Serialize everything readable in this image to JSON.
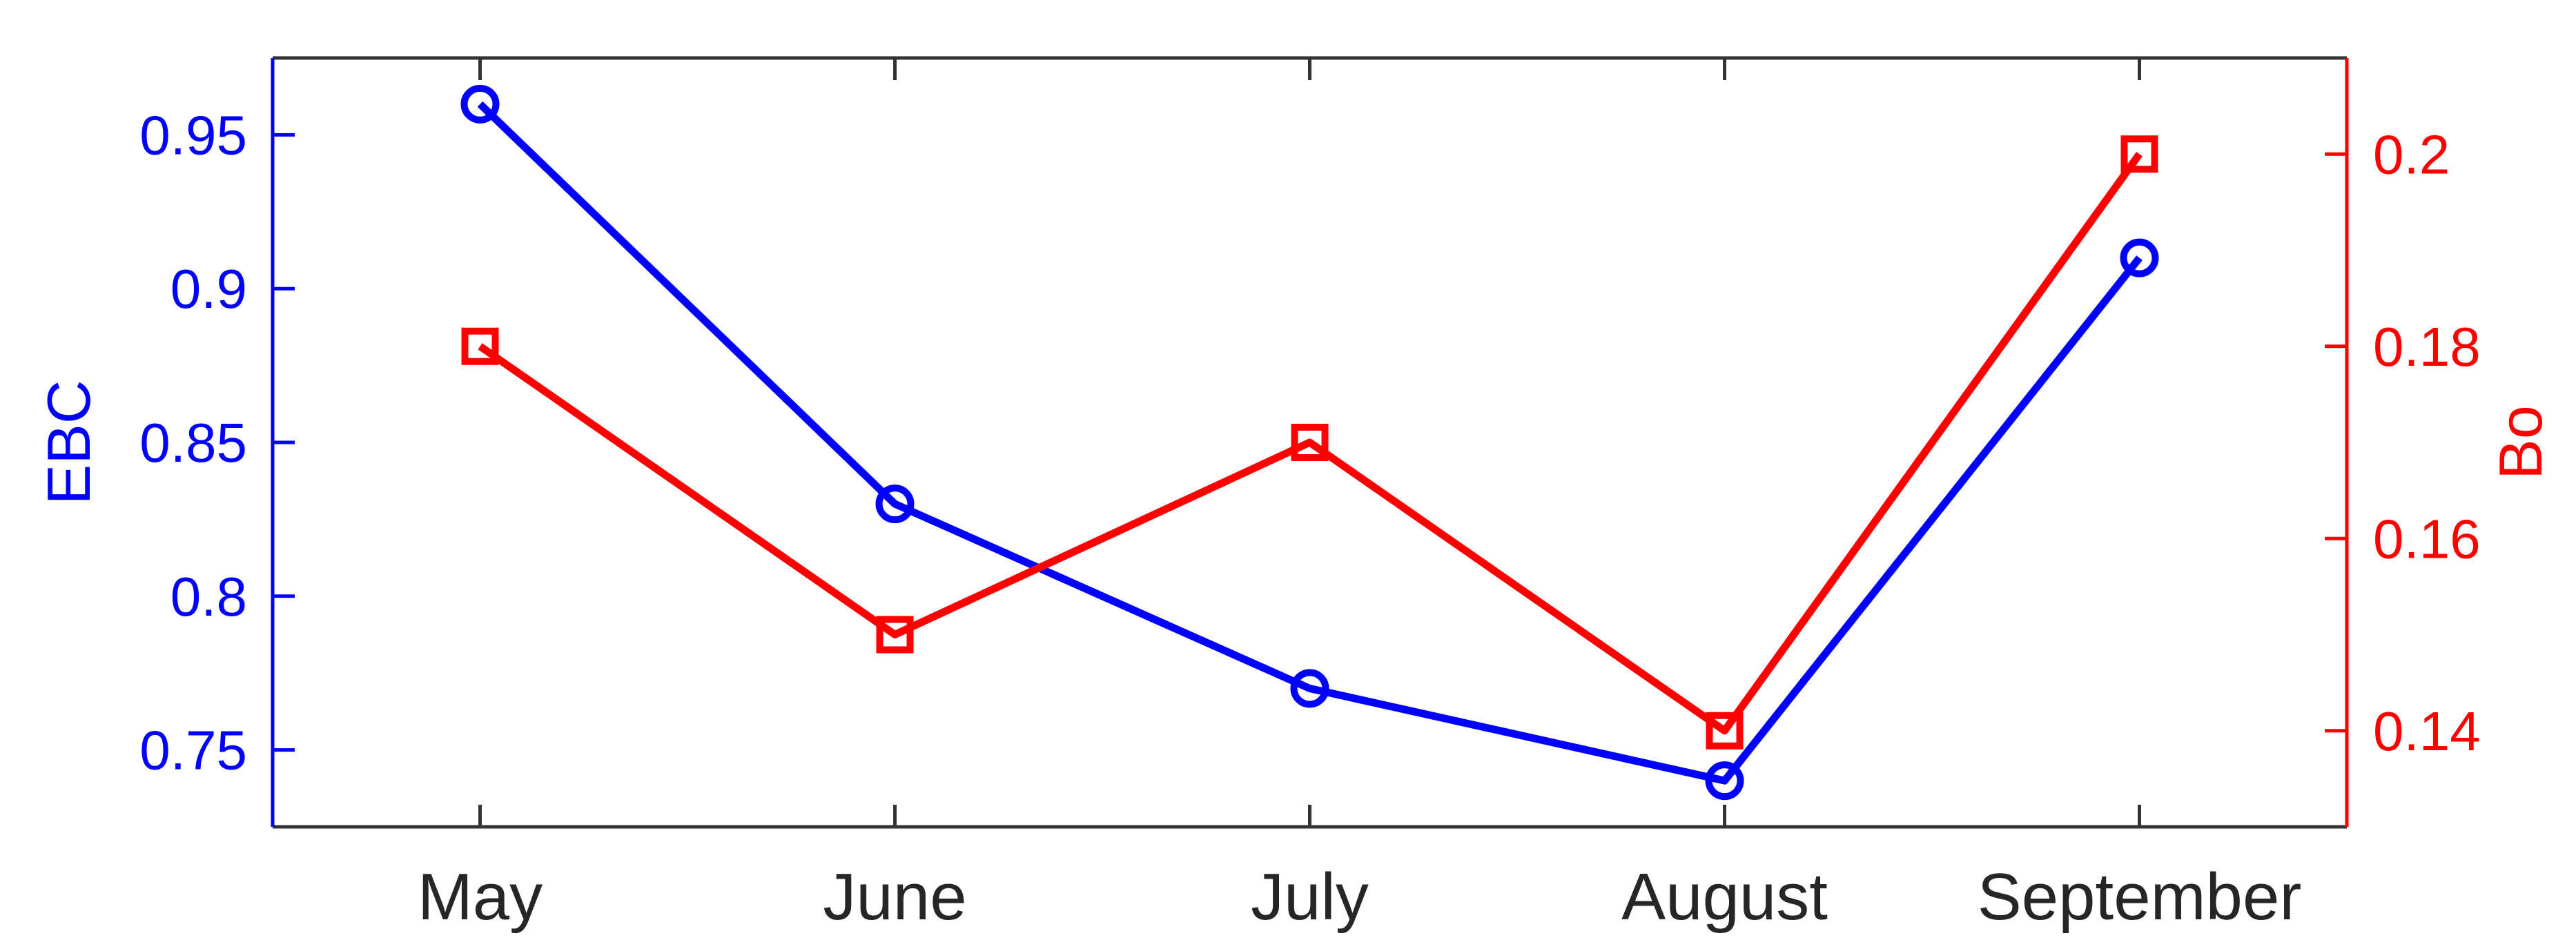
{
  "chart_data": {
    "type": "line",
    "title": "",
    "categories": [
      "May",
      "June",
      "July",
      "August",
      "September"
    ],
    "series": [
      {
        "name": "EBC",
        "axis": "left",
        "color": "#0000ff",
        "marker": "circle",
        "values": [
          0.96,
          0.83,
          0.77,
          0.74,
          0.91
        ]
      },
      {
        "name": "Bo",
        "axis": "right",
        "color": "#ff0000",
        "marker": "square",
        "values": [
          0.18,
          0.15,
          0.17,
          0.14,
          0.2
        ]
      }
    ],
    "left_axis": {
      "label": "EBC",
      "color": "#0000ff",
      "ticks": [
        0.95,
        0.9,
        0.85,
        0.8,
        0.75
      ],
      "tick_labels": [
        "0.95",
        "0.9",
        "0.85",
        "0.8",
        "0.75"
      ],
      "ylim": [
        0.725,
        0.975
      ]
    },
    "right_axis": {
      "label": "Bo",
      "color": "#ff0000",
      "ticks": [
        0.2,
        0.18,
        0.16,
        0.14
      ],
      "tick_labels": [
        "0.2",
        "0.18",
        "0.16",
        "0.14"
      ],
      "ylim": [
        0.13,
        0.21
      ]
    },
    "x_axis": {
      "color": "#333333",
      "label_color": "#262626",
      "xlim": [
        0.5,
        5.5
      ]
    },
    "grid": false,
    "legend": "none",
    "background": "#ffffff"
  }
}
